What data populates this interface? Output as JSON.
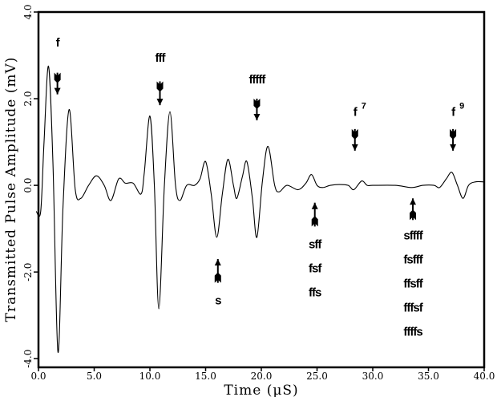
{
  "chart_data": {
    "type": "line",
    "title": "",
    "xlabel": "Time (μS)",
    "ylabel": "Transmitted Pulse Amplitude (mV)",
    "xlim": [
      0,
      40
    ],
    "ylim": [
      -4.2,
      4.0
    ],
    "xticks": [
      0,
      5,
      10,
      15,
      20,
      25,
      30,
      35,
      40
    ],
    "xtick_labels": [
      "0.0",
      "5.0",
      "10.0",
      "15.0",
      "20.0",
      "25.0",
      "30.0",
      "35.0",
      "40.0"
    ],
    "yticks": [
      -4,
      -2,
      0,
      2,
      4
    ],
    "ytick_labels": [
      "-4.0",
      "-2.0",
      "0.0",
      "2.0",
      "4.0"
    ],
    "grid": false,
    "series": [
      {
        "name": "waveform",
        "x": [
          -0.2,
          0.2,
          0.5,
          0.9,
          1.3,
          1.75,
          2.2,
          2.75,
          3.3,
          3.8,
          4.5,
          5.2,
          5.9,
          6.5,
          7.2,
          7.8,
          8.5,
          9.2,
          9.5,
          10.0,
          10.4,
          10.8,
          11.3,
          11.8,
          12.3,
          12.7,
          13.3,
          14.0,
          14.5,
          15.0,
          15.5,
          16.0,
          16.5,
          17.0,
          17.5,
          17.8,
          18.3,
          18.7,
          19.2,
          19.6,
          20.1,
          20.6,
          21.2,
          21.6,
          22.3,
          23.3,
          24.0,
          24.5,
          25.0,
          25.5,
          26.2,
          27.0,
          27.8,
          28.3,
          29.0,
          29.5,
          30.0,
          32.0,
          33.5,
          34.5,
          35.5,
          36.0,
          36.6,
          37.1,
          37.6,
          38.1,
          38.6,
          39.2,
          40.0
        ],
        "y": [
          -0.6,
          -0.6,
          1.0,
          2.75,
          0.5,
          -3.85,
          -0.5,
          1.75,
          -0.1,
          -0.3,
          0.0,
          0.22,
          0.0,
          -0.35,
          0.15,
          0.05,
          0.05,
          -0.2,
          0.3,
          1.6,
          0.0,
          -2.85,
          0.0,
          1.7,
          0.0,
          -0.35,
          0.0,
          0.0,
          0.15,
          0.55,
          -0.2,
          -1.2,
          -0.2,
          0.6,
          0.0,
          -0.3,
          0.2,
          0.55,
          -0.3,
          -1.2,
          0.1,
          0.9,
          0.0,
          -0.15,
          0.0,
          -0.1,
          0.05,
          0.25,
          0.0,
          -0.05,
          0.0,
          0.02,
          0.0,
          -0.1,
          0.1,
          0.0,
          0.0,
          0.0,
          -0.05,
          0.0,
          0.0,
          -0.05,
          0.15,
          0.3,
          0.0,
          -0.3,
          0.0,
          0.08,
          0.08
        ]
      }
    ],
    "annotations": [
      {
        "labels": [
          "f"
        ],
        "sup": "",
        "x": 1.7,
        "label_y": 3.2,
        "arrow": "down",
        "arrow_from": 2.6,
        "arrow_to": 2.1
      },
      {
        "labels": [
          "fff"
        ],
        "sup": "",
        "x": 10.9,
        "label_y": 2.85,
        "arrow": "down",
        "arrow_from": 2.4,
        "arrow_to": 1.85
      },
      {
        "labels": [
          "fffff"
        ],
        "sup": "",
        "x": 19.6,
        "label_y": 2.35,
        "arrow": "down",
        "arrow_from": 2.0,
        "arrow_to": 1.5
      },
      {
        "labels": [
          "f"
        ],
        "sup": "7",
        "x": 28.4,
        "label_y": 1.6,
        "arrow": "down",
        "arrow_from": 1.3,
        "arrow_to": 0.8
      },
      {
        "labels": [
          "f"
        ],
        "sup": "9",
        "x": 37.2,
        "label_y": 1.6,
        "arrow": "down",
        "arrow_from": 1.3,
        "arrow_to": 0.8
      },
      {
        "labels": [
          "s"
        ],
        "sup": "",
        "x": 16.1,
        "label_y": -2.75,
        "arrow": "up",
        "arrow_from": -2.25,
        "arrow_to": -1.7
      },
      {
        "labels": [
          "sff",
          "fsf",
          "ffs"
        ],
        "sup": "",
        "x": 24.8,
        "label_y": -1.45,
        "arrow": "up",
        "arrow_from": -0.95,
        "arrow_to": -0.4
      },
      {
        "labels": [
          "sffff",
          "fsfff",
          "ffsff",
          "fffsf",
          "ffffs"
        ],
        "sup": "",
        "x": 33.6,
        "label_y": -1.25,
        "arrow": "up",
        "arrow_from": -0.8,
        "arrow_to": -0.3
      }
    ]
  }
}
